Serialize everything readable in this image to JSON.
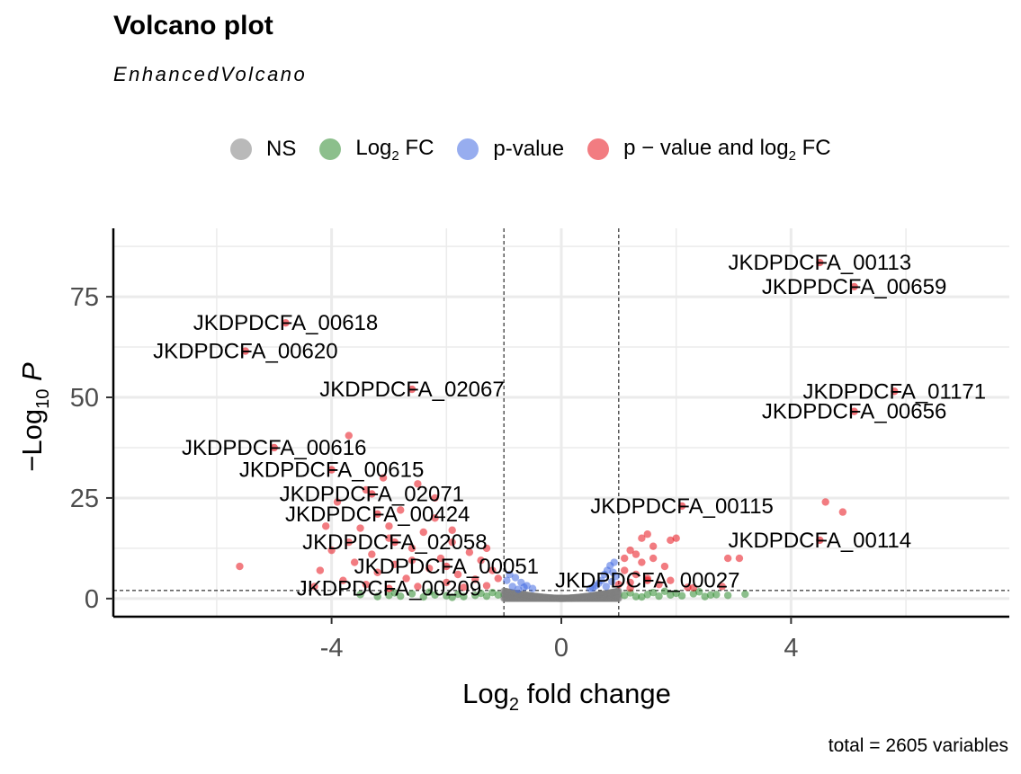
{
  "chart_data": {
    "type": "scatter",
    "title": "Volcano plot",
    "subtitle": "EnhancedVolcano",
    "caption": "total = 2605 variables",
    "xlabel": "Log2 fold change",
    "ylabel": "-Log10 P",
    "xlim": [
      -7.8,
      7.8
    ],
    "ylim": [
      -4.5,
      92
    ],
    "x_ticks": [
      -4,
      0,
      4
    ],
    "y_ticks": [
      0,
      25,
      50,
      75
    ],
    "fc_cutoff": 1,
    "p_cutoff_log10": 2,
    "grid": true,
    "legend_position": "top",
    "colors": {
      "NS": "#808080",
      "FC": "#2e8b2e",
      "P": "#4169e1",
      "FC_P": "#e8101a"
    },
    "legend": [
      {
        "key": "NS",
        "label": "NS"
      },
      {
        "key": "FC",
        "label": "Log",
        "sub": "2",
        "after": " FC"
      },
      {
        "key": "P",
        "label": "p-value"
      },
      {
        "key": "FC_P",
        "label": "p − value and log",
        "sub": "2",
        "after": " FC"
      }
    ],
    "labeled_points": [
      {
        "name": "JKDPDCFA_00113",
        "x": 4.5,
        "y": 83.5
      },
      {
        "name": "JKDPDCFA_00659",
        "x": 5.1,
        "y": 77.5
      },
      {
        "name": "JKDPDCFA_00618",
        "x": -4.8,
        "y": 68.5
      },
      {
        "name": "JKDPDCFA_00620",
        "x": -5.5,
        "y": 61.5
      },
      {
        "name": "JKDPDCFA_02067",
        "x": -2.6,
        "y": 52.0
      },
      {
        "name": "JKDPDCFA_01171",
        "x": 5.8,
        "y": 51.5
      },
      {
        "name": "JKDPDCFA_00656",
        "x": 5.1,
        "y": 46.5
      },
      {
        "name": "JKDPDCFA_00616",
        "x": -5.0,
        "y": 37.5
      },
      {
        "name": "JKDPDCFA_00615",
        "x": -4.0,
        "y": 32.0
      },
      {
        "name": "JKDPDCFA_02071",
        "x": -3.3,
        "y": 26.0
      },
      {
        "name": "JKDPDCFA_00115",
        "x": 2.1,
        "y": 23.0
      },
      {
        "name": "JKDPDCFA_00424",
        "x": -3.2,
        "y": 21.0
      },
      {
        "name": "JKDPDCFA_00114",
        "x": 4.5,
        "y": 14.5
      },
      {
        "name": "JKDPDCFA_02058",
        "x": -2.9,
        "y": 14.0
      },
      {
        "name": "JKDPDCFA_00051",
        "x": -2.0,
        "y": 8.0
      },
      {
        "name": "JKDPDCFA_00027",
        "x": 1.5,
        "y": 4.5
      },
      {
        "name": "JKDPDCFA_00209",
        "x": -3.0,
        "y": 2.5
      }
    ],
    "sig_points": [
      [
        -5.6,
        8
      ],
      [
        -3.7,
        40.5
      ],
      [
        -3.1,
        30
      ],
      [
        -2.5,
        28.5
      ],
      [
        -3.4,
        27
      ],
      [
        -3.9,
        24
      ],
      [
        -2.8,
        22
      ],
      [
        -2.2,
        20
      ],
      [
        -4.1,
        18
      ],
      [
        -3.5,
        17.5
      ],
      [
        -2.4,
        16.5
      ],
      [
        -3.0,
        15
      ],
      [
        -1.9,
        14
      ],
      [
        -4.0,
        12
      ],
      [
        -3.3,
        11
      ],
      [
        -2.6,
        12.5
      ],
      [
        -1.6,
        11.5
      ],
      [
        -2.1,
        10
      ],
      [
        -3.6,
        9
      ],
      [
        -2.9,
        8.5
      ],
      [
        -1.4,
        9.5
      ],
      [
        -4.2,
        7
      ],
      [
        -2.3,
        7.5
      ],
      [
        -3.2,
        6.5
      ],
      [
        -1.8,
        6
      ],
      [
        -1.2,
        7
      ],
      [
        -2.7,
        5
      ],
      [
        -3.8,
        4.5
      ],
      [
        -1.5,
        4.8
      ],
      [
        -2.0,
        4
      ],
      [
        -1.1,
        5
      ],
      [
        -4.3,
        3
      ],
      [
        -3.4,
        3.5
      ],
      [
        -2.5,
        3
      ],
      [
        -1.3,
        3.2
      ],
      [
        -1.7,
        2.8
      ],
      [
        -3.0,
        18
      ],
      [
        -2.2,
        25
      ],
      [
        -3.7,
        14
      ],
      [
        -1.9,
        17
      ],
      [
        -2.6,
        9.5
      ],
      [
        -1.3,
        12.5
      ],
      [
        1.1,
        10
      ],
      [
        1.2,
        12
      ],
      [
        1.3,
        11
      ],
      [
        1.4,
        15
      ],
      [
        1.5,
        16
      ],
      [
        1.6,
        13
      ],
      [
        1.8,
        8
      ],
      [
        1.3,
        6
      ],
      [
        1.2,
        4
      ],
      [
        1.5,
        5
      ],
      [
        1.7,
        3.5
      ],
      [
        1.1,
        7
      ],
      [
        1.4,
        9
      ],
      [
        1.9,
        4.5
      ],
      [
        2.2,
        2.8
      ],
      [
        1.6,
        10
      ],
      [
        1.2,
        2.6
      ],
      [
        1.9,
        14.5
      ],
      [
        2.0,
        15
      ],
      [
        2.9,
        10
      ],
      [
        3.1,
        10
      ],
      [
        4.6,
        24
      ],
      [
        4.9,
        21.5
      ],
      [
        2.8,
        3
      ],
      [
        2.3,
        2.7
      ],
      [
        1.0,
        3.5
      ]
    ],
    "fc_points": [
      [
        -3.5,
        1.0
      ],
      [
        -3.2,
        0.5
      ],
      [
        -2.8,
        0.6
      ],
      [
        -2.4,
        0.4
      ],
      [
        -2.0,
        0.7
      ],
      [
        -1.7,
        0.5
      ],
      [
        -1.5,
        0.8
      ],
      [
        -1.3,
        0.6
      ],
      [
        -1.1,
        0.9
      ],
      [
        -2.2,
        0.9
      ],
      [
        -2.6,
        1.2
      ],
      [
        -1.8,
        1.1
      ],
      [
        -3.0,
        0.8
      ],
      [
        -1.4,
        1.3
      ],
      [
        -2.9,
        1.4
      ],
      [
        -1.9,
        0.3
      ],
      [
        -1.2,
        1.5
      ],
      [
        -2.3,
        1.6
      ],
      [
        1.1,
        0.8
      ],
      [
        1.3,
        0.5
      ],
      [
        1.5,
        1.0
      ],
      [
        1.7,
        0.6
      ],
      [
        1.9,
        0.9
      ],
      [
        2.1,
        0.7
      ],
      [
        2.3,
        1.2
      ],
      [
        2.5,
        0.5
      ],
      [
        2.7,
        1.0
      ],
      [
        2.9,
        0.8
      ],
      [
        3.2,
        1.1
      ],
      [
        1.2,
        1.4
      ],
      [
        1.6,
        1.5
      ],
      [
        2.0,
        1.3
      ],
      [
        2.4,
        1.7
      ],
      [
        1.4,
        0.4
      ],
      [
        1.8,
        1.8
      ],
      [
        2.6,
        0.9
      ]
    ],
    "p_points": [
      [
        -0.5,
        2.5
      ],
      [
        -0.6,
        3.2
      ],
      [
        -0.7,
        4.0
      ],
      [
        -0.8,
        5.2
      ],
      [
        -0.9,
        6.0
      ],
      [
        -0.95,
        4.5
      ],
      [
        -0.85,
        3.0
      ],
      [
        -0.75,
        2.3
      ],
      [
        -0.65,
        2.8
      ],
      [
        0.5,
        2.5
      ],
      [
        0.6,
        3.2
      ],
      [
        0.7,
        4.5
      ],
      [
        0.75,
        6.0
      ],
      [
        0.8,
        7.0
      ],
      [
        0.85,
        8.2
      ],
      [
        0.9,
        6.5
      ],
      [
        0.95,
        5.5
      ],
      [
        0.65,
        3.8
      ],
      [
        0.55,
        2.6
      ],
      [
        0.88,
        4.2
      ],
      [
        0.92,
        9.0
      ],
      [
        0.78,
        3.0
      ]
    ]
  }
}
